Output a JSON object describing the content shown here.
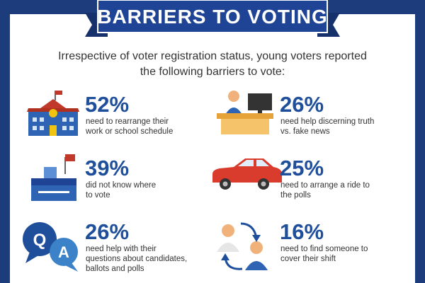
{
  "header": {
    "title": "BARRIERS TO VOTING"
  },
  "intro": [
    "Irrespective of voter registration status, young voters reported",
    "the following barriers to vote:"
  ],
  "items": [
    {
      "percent": "52%",
      "lines": [
        "need to rearrange their",
        "work or school schedule"
      ]
    },
    {
      "percent": "26%",
      "lines": [
        "need help discerning truth",
        "vs. fake news"
      ]
    },
    {
      "percent": "39%",
      "lines": [
        "did not know where",
        "to vote"
      ]
    },
    {
      "percent": "25%",
      "lines": [
        "need to arrange a ride to",
        "the polls"
      ]
    },
    {
      "percent": "26%",
      "lines": [
        "need help with their",
        "questions about candidates,",
        "ballots and polls"
      ]
    },
    {
      "percent": "16%",
      "lines": [
        "need to find someone to",
        "cover their shift"
      ]
    }
  ]
}
